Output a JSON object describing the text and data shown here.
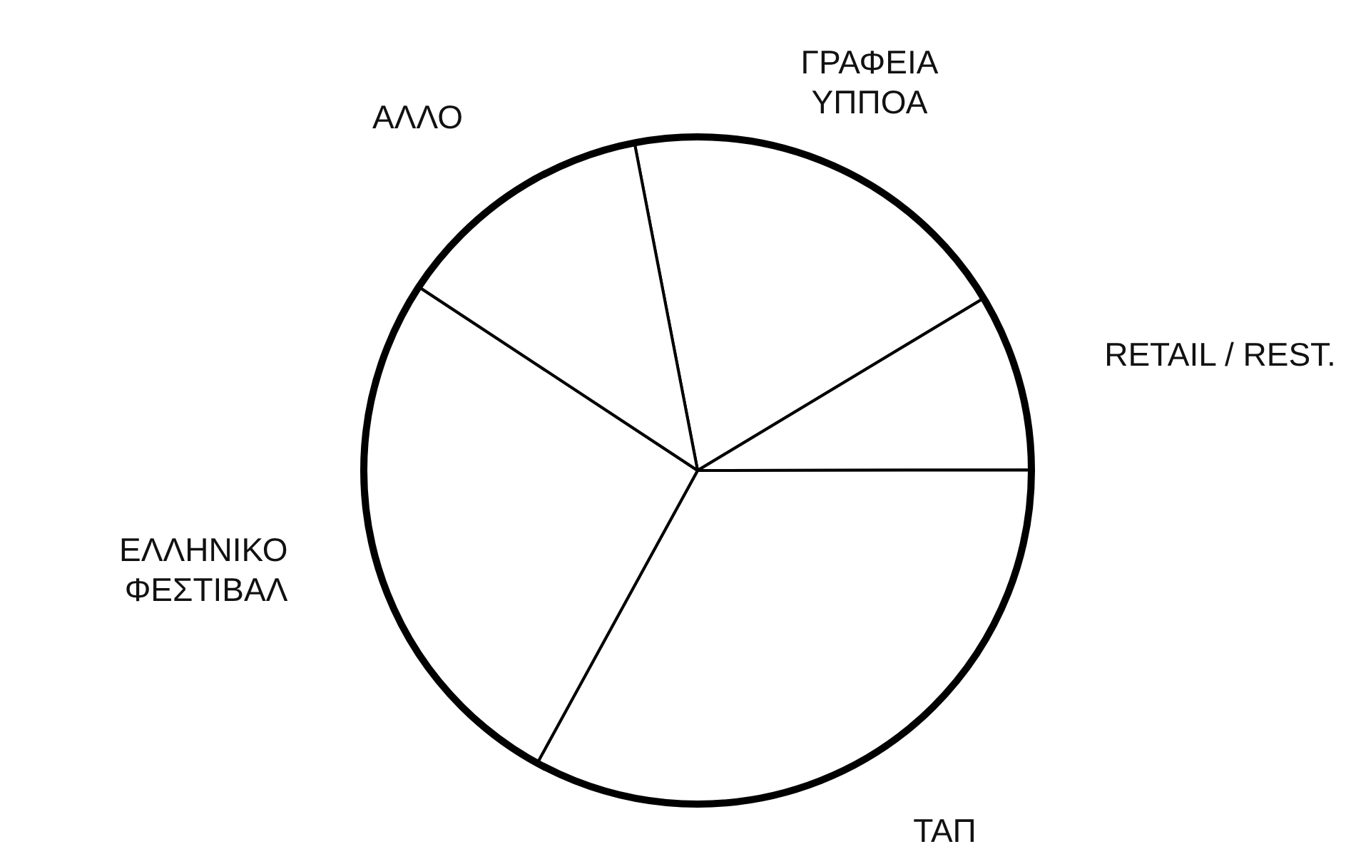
{
  "chart_data": {
    "type": "pie",
    "categories": [
      "ΓΡΑΦΕΙΑ\nΥΠΠΟΑ",
      "RETAIL / REST.",
      "ΤΑΠ",
      "ΕΛΛΗΝΙΚΟ\nΦΕΣΤΙΒΑΛ",
      "ΑΛΛΟ"
    ],
    "values": [
      19.4,
      8.6,
      33.0,
      26.3,
      12.7
    ],
    "colors": [
      "#ffffff",
      "#ffffff",
      "#ffffff",
      "#ffffff",
      "#ffffff"
    ]
  }
}
